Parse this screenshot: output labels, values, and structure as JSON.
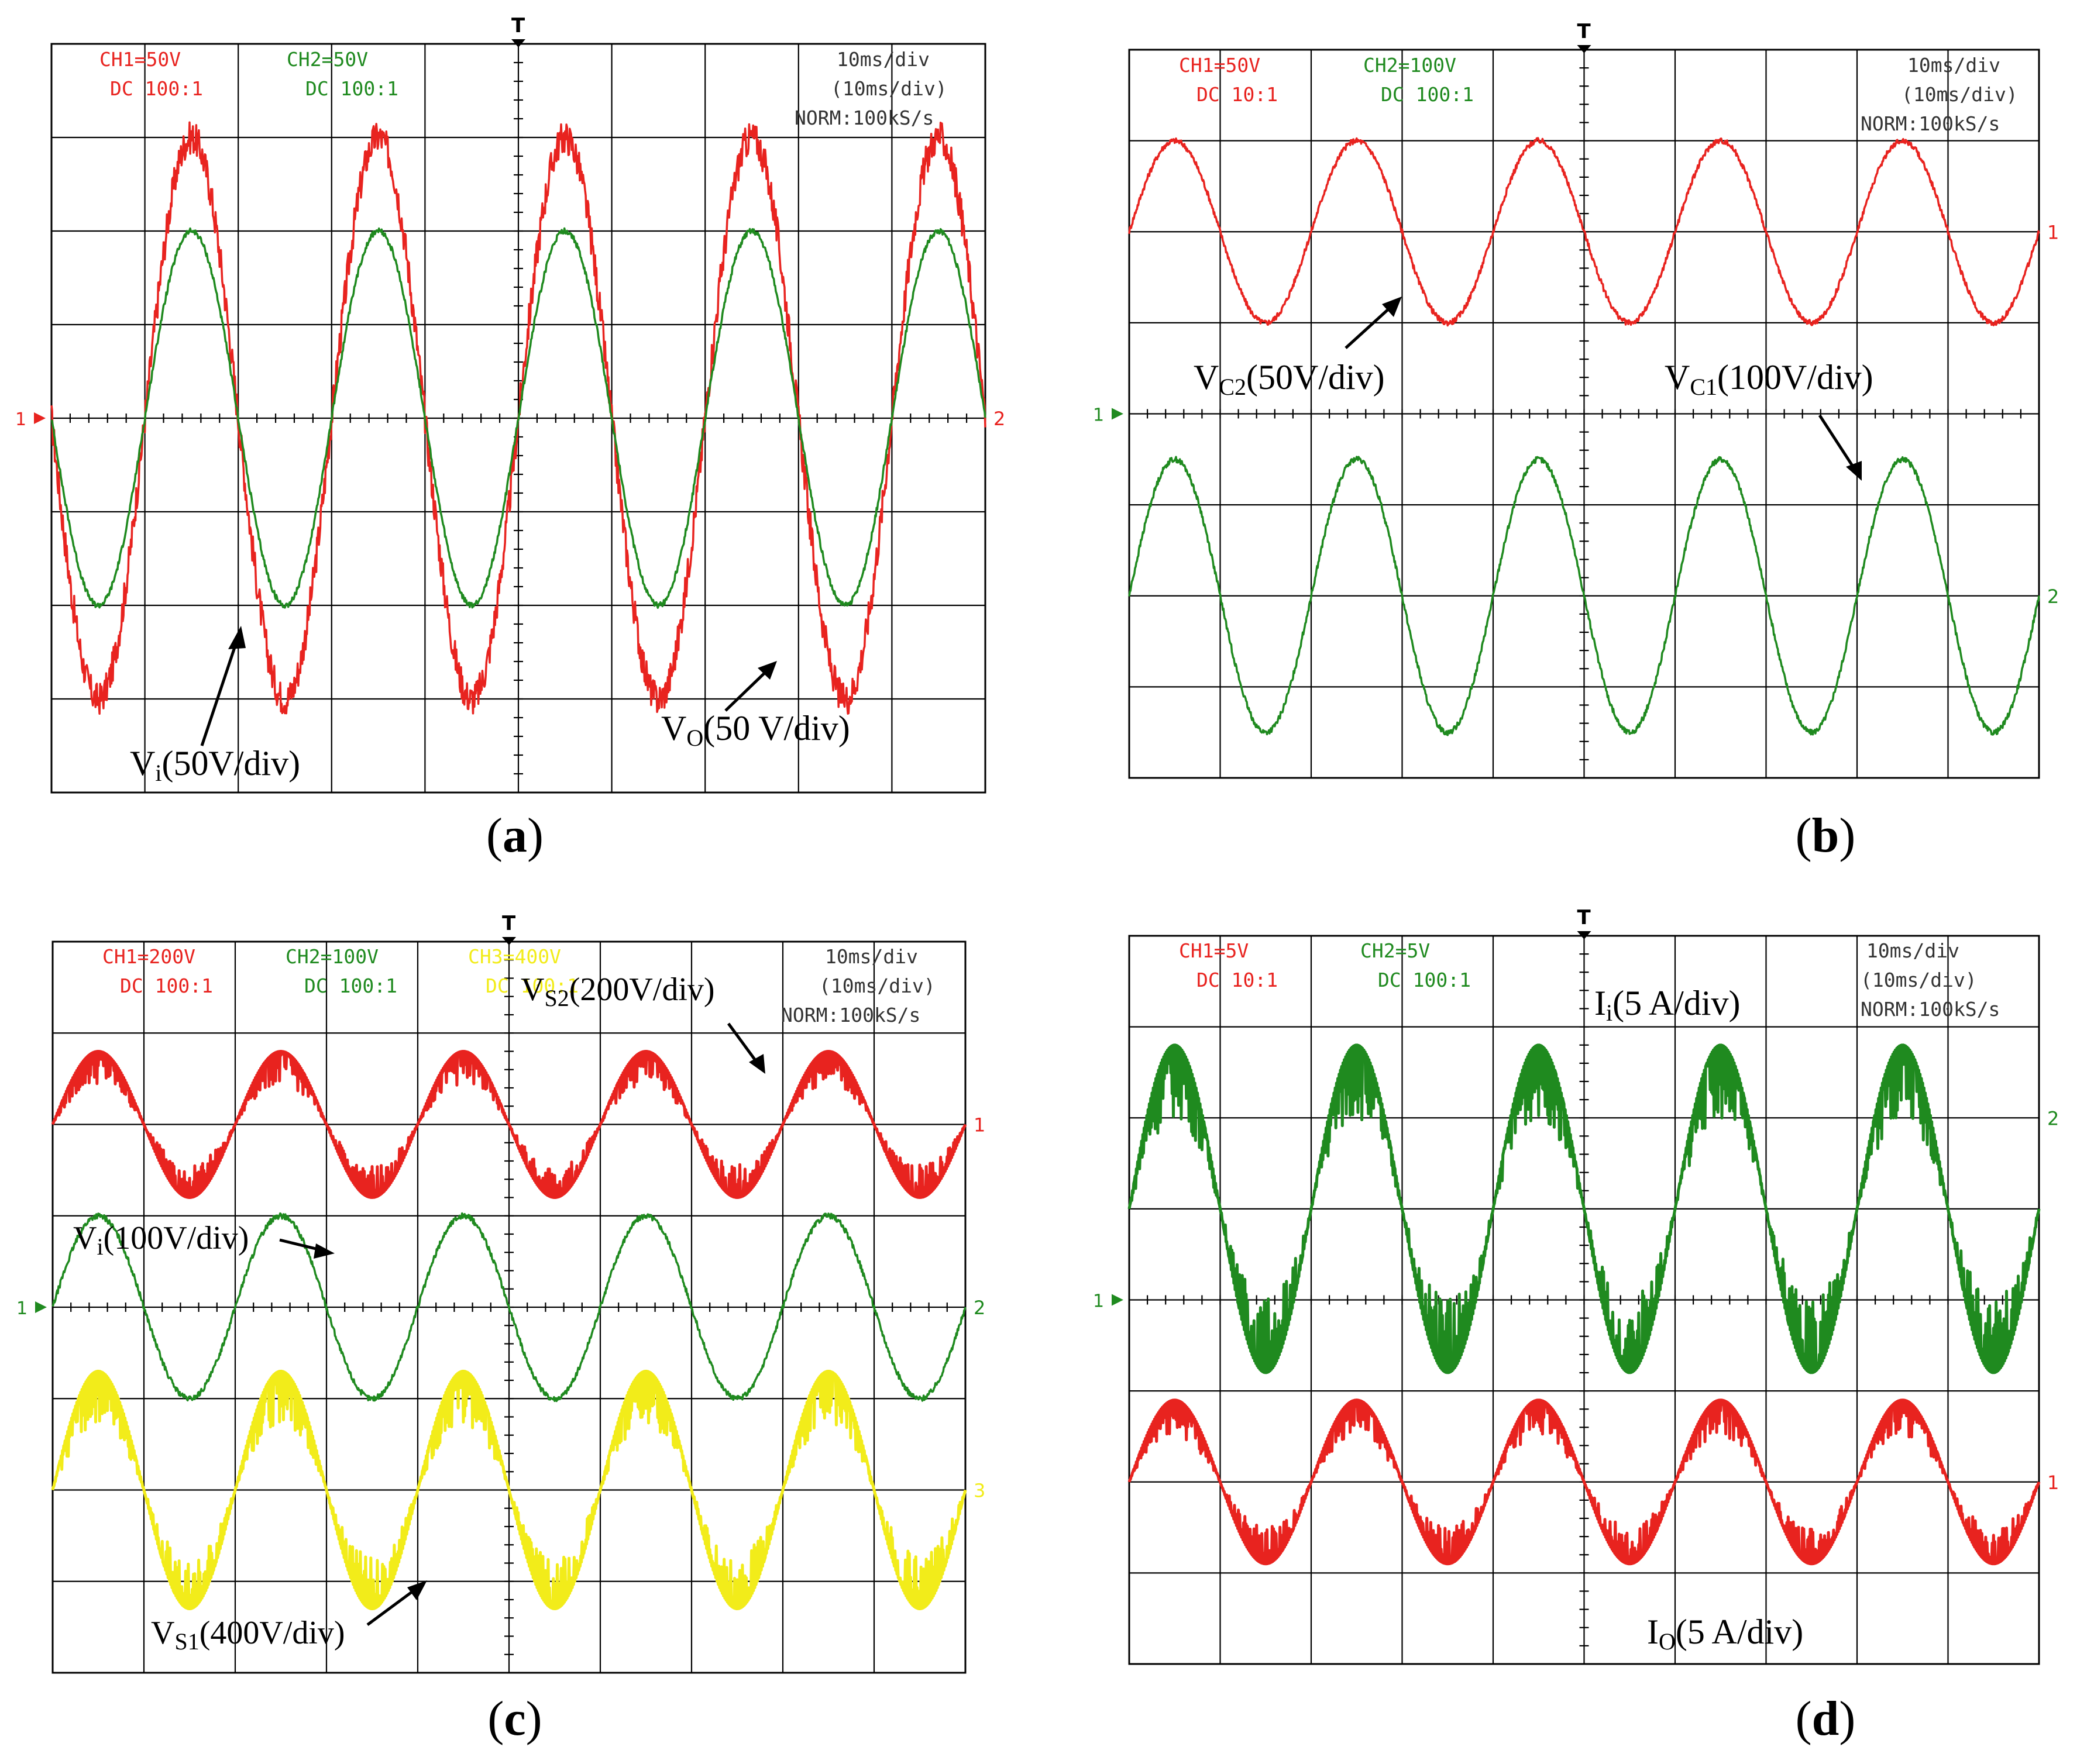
{
  "panels": [
    {
      "id": "a",
      "caption_letter": "a",
      "header": {
        "ch1": {
          "scale": "CH1=50V",
          "coupling": "DC 100:1",
          "color": "#e8231f"
        },
        "ch2": {
          "scale": "CH2=50V",
          "coupling": "DC 100:1",
          "color": "#1f8a1f"
        },
        "timebase": "10ms/div",
        "timebase2": "(10ms/div)",
        "mode": "NORM:100kS/s"
      },
      "markers": {
        "left": "1",
        "right": "2",
        "top": "T"
      },
      "annotations": [
        {
          "main": "V",
          "sub": "i",
          "rest": "(50V/div)"
        },
        {
          "main": "V",
          "sub": "O",
          "rest": "(50 V/div)"
        }
      ]
    },
    {
      "id": "b",
      "caption_letter": "b",
      "header": {
        "ch1": {
          "scale": "CH1=50V",
          "coupling": "DC 10:1",
          "color": "#e8231f"
        },
        "ch2": {
          "scale": "CH2=100V",
          "coupling": "DC 100:1",
          "color": "#1f8a1f"
        },
        "timebase": "10ms/div",
        "timebase2": "(10ms/div)",
        "mode": "NORM:100kS/s"
      },
      "markers": {
        "left": "1",
        "right1": "1",
        "right2": "2",
        "top": "T"
      },
      "annotations": [
        {
          "main": "V",
          "sub": "C2",
          "rest": "(50V/div)"
        },
        {
          "main": "V",
          "sub": "C1",
          "rest": "(100V/div)"
        }
      ]
    },
    {
      "id": "c",
      "caption_letter": "c",
      "header": {
        "ch1": {
          "scale": "CH1=200V",
          "coupling": "DC 100:1",
          "color": "#e8231f"
        },
        "ch2": {
          "scale": "CH2=100V",
          "coupling": "DC 100:1",
          "color": "#1f8a1f"
        },
        "ch3": {
          "scale": "CH3=400V",
          "coupling": "DC 100:1",
          "color": "#f2ec1a"
        },
        "timebase": "10ms/div",
        "timebase2": "(10ms/div)",
        "mode": "NORM:100kS/s"
      },
      "markers": {
        "left": "1",
        "right1": "1",
        "right2": "2",
        "right3": "3",
        "top": "T"
      },
      "annotations": [
        {
          "main": "V",
          "sub": "S2",
          "rest": "(200V/div)"
        },
        {
          "main": "V",
          "sub": "i",
          "rest": "(100V/div)"
        },
        {
          "main": "V",
          "sub": "S1",
          "rest": "(400V/div)"
        }
      ]
    },
    {
      "id": "d",
      "caption_letter": "d",
      "header": {
        "ch1": {
          "scale": "CH1=5V",
          "coupling": "DC 10:1",
          "color": "#e8231f"
        },
        "ch2": {
          "scale": "CH2=5V",
          "coupling": "DC 100:1",
          "color": "#1f8a1f"
        },
        "timebase": "10ms/div",
        "timebase2": "(10ms/div)",
        "mode": "NORM:100kS/s"
      },
      "markers": {
        "left": "1",
        "right1": "2",
        "right2": "1",
        "top": "T"
      },
      "annotations": [
        {
          "main": "I",
          "sub": "i",
          "rest": "(5 A/div)"
        },
        {
          "main": "I",
          "sub": "O",
          "rest": "(5 A/div)"
        }
      ]
    }
  ],
  "chart_data": [
    {
      "type": "line",
      "panel": "a",
      "xlabel": "",
      "ylabel": "",
      "grid": true,
      "x_divisions": 10,
      "y_divisions": 8,
      "x_per_div": "10ms/div",
      "series": [
        {
          "name": "Vo",
          "channel": "CH1",
          "color": "#e8231f",
          "frequency_hz": 50,
          "amplitude_div": 3.0,
          "offset_div": 0.0,
          "phase_div": 1.0,
          "noise": "heavy"
        },
        {
          "name": "Vi",
          "channel": "CH2",
          "color": "#1f8a1f",
          "frequency_hz": 50,
          "amplitude_div": 2.0,
          "offset_div": 0.0,
          "phase_div": 1.0,
          "noise": "light"
        }
      ]
    },
    {
      "type": "line",
      "panel": "b",
      "xlabel": "",
      "ylabel": "",
      "grid": true,
      "x_divisions": 10,
      "y_divisions": 8,
      "x_per_div": "10ms/div",
      "series": [
        {
          "name": "VC2",
          "channel": "CH1",
          "color": "#e8231f",
          "frequency_hz": 50,
          "amplitude_div": 1.0,
          "offset_div": 2.0,
          "phase_div": 0.0,
          "noise": "light"
        },
        {
          "name": "VC1",
          "channel": "CH2",
          "color": "#1f8a1f",
          "frequency_hz": 50,
          "amplitude_div": 1.5,
          "offset_div": -2.0,
          "phase_div": 0.0,
          "noise": "light"
        }
      ]
    },
    {
      "type": "line",
      "panel": "c",
      "xlabel": "",
      "ylabel": "",
      "grid": true,
      "x_divisions": 10,
      "y_divisions": 8,
      "x_per_div": "10ms/div",
      "series": [
        {
          "name": "VS2",
          "channel": "CH1",
          "color": "#e8231f",
          "frequency_hz": 50,
          "amplitude_div": 0.8,
          "offset_div": 2.0,
          "phase_div": 0.0,
          "noise": "pwm"
        },
        {
          "name": "Vi",
          "channel": "CH2",
          "color": "#1f8a1f",
          "frequency_hz": 50,
          "amplitude_div": 1.0,
          "offset_div": 0.0,
          "phase_div": 0.0,
          "noise": "light"
        },
        {
          "name": "VS1",
          "channel": "CH3",
          "color": "#f2ec1a",
          "frequency_hz": 50,
          "amplitude_div": 1.3,
          "offset_div": -2.0,
          "phase_div": 0.0,
          "noise": "pwm"
        }
      ]
    },
    {
      "type": "line",
      "panel": "d",
      "xlabel": "",
      "ylabel": "",
      "grid": true,
      "x_divisions": 10,
      "y_divisions": 8,
      "x_per_div": "10ms/div",
      "series": [
        {
          "name": "Ii",
          "channel": "CH2",
          "color": "#1f8a1f",
          "frequency_hz": 50,
          "amplitude_div": 1.8,
          "offset_div": 1.0,
          "phase_div": 0.0,
          "noise": "pwm"
        },
        {
          "name": "IO",
          "channel": "CH1",
          "color": "#e8231f",
          "frequency_hz": 50,
          "amplitude_div": 0.9,
          "offset_div": -2.0,
          "phase_div": 0.0,
          "noise": "pwm"
        }
      ]
    }
  ]
}
